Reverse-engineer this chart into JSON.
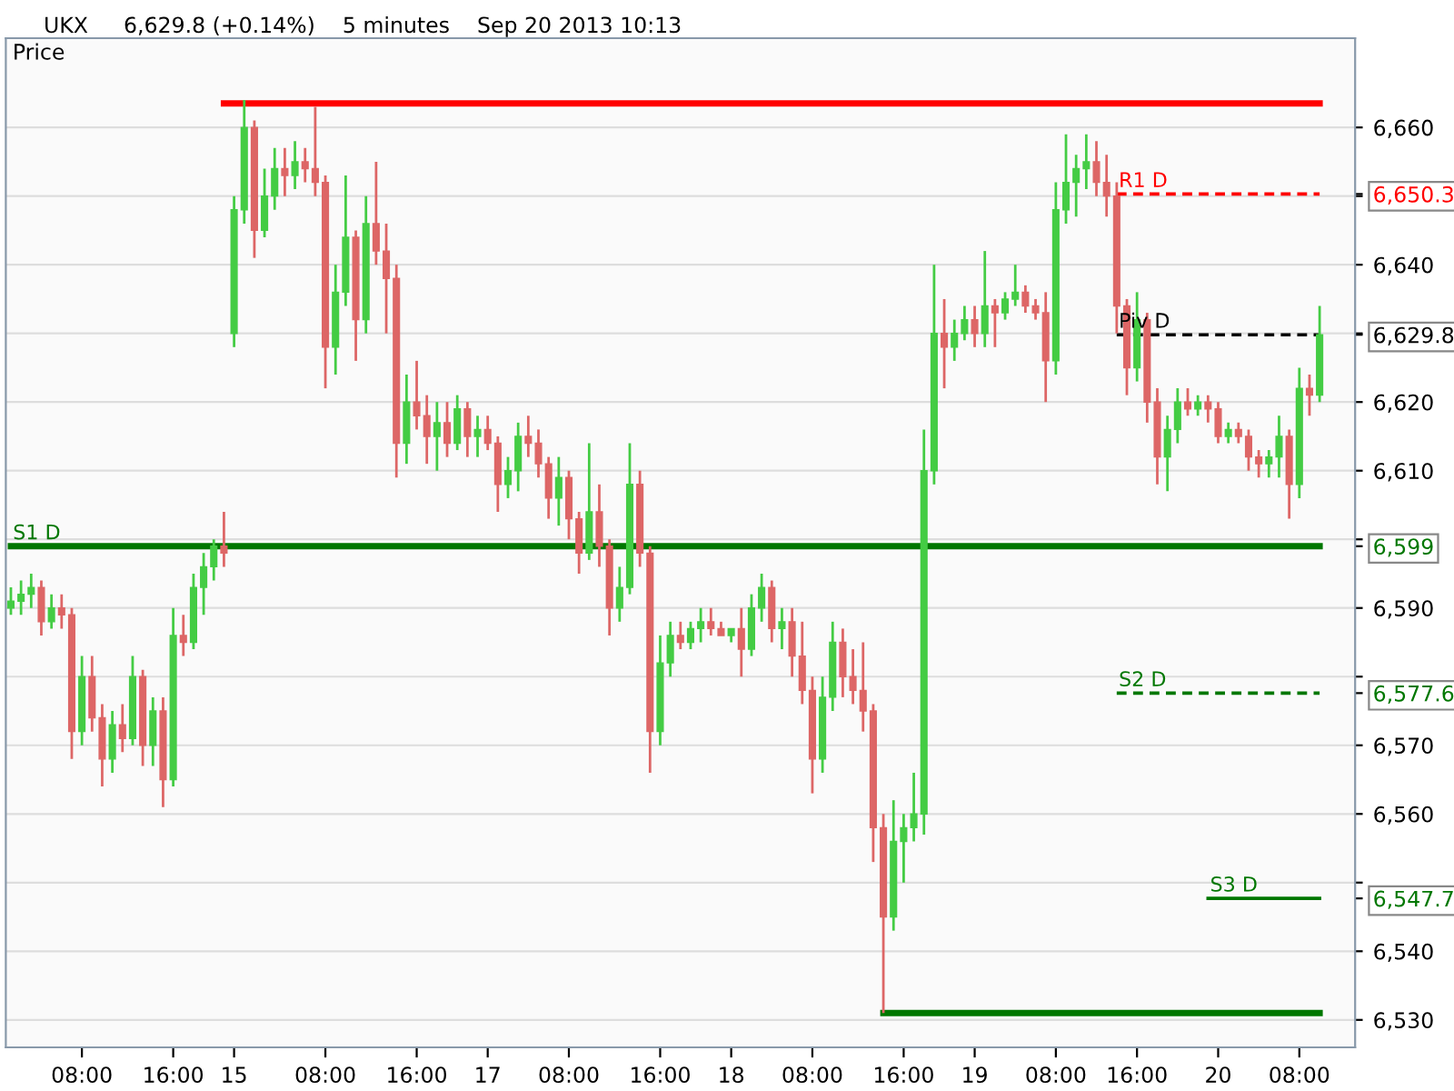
{
  "chart_data": {
    "type": "candlestick",
    "title": "UKX",
    "subtitle": "6,629.8 (+0.14%)    5 minutes    Sep 20 2013 10:13",
    "ylabel": "Price",
    "categories": [
      null,
      null,
      null,
      null,
      null,
      null,
      null,
      "08:00",
      null,
      null,
      null,
      null,
      null,
      null,
      null,
      null,
      "16:00",
      null,
      null,
      null,
      null,
      null,
      "15",
      null,
      null,
      null,
      null,
      null,
      null,
      null,
      null,
      "08:00",
      null,
      null,
      null,
      null,
      null,
      null,
      null,
      null,
      "16:00",
      null,
      null,
      null,
      null,
      null,
      null,
      "17",
      null,
      null,
      null,
      null,
      null,
      null,
      null,
      "08:00",
      null,
      null,
      null,
      null,
      null,
      null,
      null,
      null,
      "16:00",
      null,
      null,
      null,
      null,
      null,
      null,
      "18",
      null,
      null,
      null,
      null,
      null,
      null,
      null,
      "08:00",
      null,
      null,
      null,
      null,
      null,
      null,
      null,
      null,
      "16:00",
      null,
      null,
      null,
      null,
      null,
      null,
      "19",
      null,
      null,
      null,
      null,
      null,
      null,
      null,
      "08:00",
      null,
      null,
      null,
      null,
      null,
      null,
      null,
      "16:00",
      null,
      null,
      null,
      null,
      null,
      null,
      null,
      "20",
      null,
      null,
      null,
      null,
      null,
      null,
      null,
      "08:00",
      null,
      null
    ],
    "ohlc": [
      [
        6590,
        6593,
        6589,
        6591
      ],
      [
        6591,
        6594,
        6589,
        6592
      ],
      [
        6592,
        6595,
        6590,
        6593
      ],
      [
        6593,
        6594,
        6586,
        6588
      ],
      [
        6588,
        6592,
        6587,
        6590
      ],
      [
        6590,
        6592,
        6587,
        6589
      ],
      [
        6589,
        6590,
        6568,
        6572
      ],
      [
        6572,
        6583,
        6570,
        6580
      ],
      [
        6580,
        6583,
        6572,
        6574
      ],
      [
        6574,
        6576,
        6564,
        6568
      ],
      [
        6568,
        6575,
        6566,
        6573
      ],
      [
        6573,
        6576,
        6569,
        6571
      ],
      [
        6571,
        6583,
        6570,
        6580
      ],
      [
        6580,
        6581,
        6567,
        6570
      ],
      [
        6570,
        6577,
        6567,
        6575
      ],
      [
        6575,
        6577,
        6561,
        6565
      ],
      [
        6565,
        6590,
        6564,
        6586
      ],
      [
        6586,
        6589,
        6583,
        6585
      ],
      [
        6585,
        6595,
        6584,
        6593
      ],
      [
        6593,
        6598,
        6589,
        6596
      ],
      [
        6596,
        6600,
        6594,
        6599
      ],
      [
        6599,
        6604,
        6596,
        6598
      ],
      [
        6630,
        6650,
        6628,
        6648
      ],
      [
        6648,
        6664,
        6646,
        6660
      ],
      [
        6660,
        6661,
        6641,
        6645
      ],
      [
        6645,
        6654,
        6644,
        6650
      ],
      [
        6650,
        6657,
        6648,
        6654
      ],
      [
        6654,
        6657,
        6650,
        6653
      ],
      [
        6653,
        6658,
        6651,
        6655
      ],
      [
        6655,
        6657,
        6652,
        6654
      ],
      [
        6654,
        6663,
        6650,
        6652
      ],
      [
        6652,
        6653,
        6622,
        6628
      ],
      [
        6628,
        6640,
        6624,
        6636
      ],
      [
        6636,
        6653,
        6634,
        6644
      ],
      [
        6644,
        6645,
        6626,
        6632
      ],
      [
        6632,
        6650,
        6630,
        6646
      ],
      [
        6646,
        6655,
        6640,
        6642
      ],
      [
        6642,
        6646,
        6630,
        6638
      ],
      [
        6638,
        6640,
        6609,
        6614
      ],
      [
        6614,
        6624,
        6611,
        6620
      ],
      [
        6620,
        6626,
        6616,
        6618
      ],
      [
        6618,
        6621,
        6611,
        6615
      ],
      [
        6615,
        6620,
        6610,
        6617
      ],
      [
        6617,
        6620,
        6612,
        6614
      ],
      [
        6614,
        6621,
        6613,
        6619
      ],
      [
        6619,
        6620,
        6612,
        6615
      ],
      [
        6615,
        6618,
        6612,
        6616
      ],
      [
        6616,
        6618,
        6613,
        6614
      ],
      [
        6614,
        6615,
        6604,
        6608
      ],
      [
        6608,
        6612,
        6606,
        6610
      ],
      [
        6610,
        6617,
        6607,
        6615
      ],
      [
        6615,
        6618,
        6612,
        6614
      ],
      [
        6614,
        6616,
        6609,
        6611
      ],
      [
        6611,
        6612,
        6603,
        6606
      ],
      [
        6606,
        6612,
        6602,
        6609
      ],
      [
        6609,
        6610,
        6600,
        6603
      ],
      [
        6603,
        6604,
        6595,
        6598
      ],
      [
        6598,
        6614,
        6597,
        6604
      ],
      [
        6604,
        6608,
        6596,
        6599
      ],
      [
        6599,
        6600,
        6586,
        6590
      ],
      [
        6590,
        6596,
        6588,
        6593
      ],
      [
        6593,
        6614,
        6592,
        6608
      ],
      [
        6608,
        6610,
        6596,
        6598
      ],
      [
        6598,
        6599,
        6566,
        6572
      ],
      [
        6572,
        6586,
        6570,
        6582
      ],
      [
        6582,
        6588,
        6580,
        6586
      ],
      [
        6586,
        6588,
        6584,
        6585
      ],
      [
        6585,
        6588,
        6584,
        6587
      ],
      [
        6587,
        6590,
        6585,
        6588
      ],
      [
        6588,
        6590,
        6586,
        6587
      ],
      [
        6587,
        6588,
        6586,
        6586
      ],
      [
        6586,
        6587,
        6585,
        6587
      ],
      [
        6587,
        6590,
        6580,
        6584
      ],
      [
        6584,
        6592,
        6583,
        6590
      ],
      [
        6590,
        6595,
        6588,
        6593
      ],
      [
        6593,
        6594,
        6585,
        6587
      ],
      [
        6587,
        6590,
        6584,
        6588
      ],
      [
        6588,
        6590,
        6580,
        6583
      ],
      [
        6583,
        6588,
        6576,
        6578
      ],
      [
        6578,
        6580,
        6563,
        6568
      ],
      [
        6568,
        6580,
        6566,
        6577
      ],
      [
        6577,
        6588,
        6575,
        6585
      ],
      [
        6585,
        6587,
        6577,
        6580
      ],
      [
        6580,
        6584,
        6576,
        6578
      ],
      [
        6578,
        6585,
        6572,
        6575
      ],
      [
        6575,
        6576,
        6553,
        6558
      ],
      [
        6558,
        6560,
        6531,
        6545
      ],
      [
        6545,
        6562,
        6543,
        6556
      ],
      [
        6556,
        6560,
        6550,
        6558
      ],
      [
        6558,
        6566,
        6556,
        6560
      ],
      [
        6560,
        6616,
        6557,
        6610
      ],
      [
        6610,
        6640,
        6608,
        6630
      ],
      [
        6630,
        6635,
        6622,
        6628
      ],
      [
        6628,
        6632,
        6626,
        6630
      ],
      [
        6630,
        6634,
        6629,
        6632
      ],
      [
        6632,
        6634,
        6628,
        6630
      ],
      [
        6630,
        6642,
        6628,
        6634
      ],
      [
        6634,
        6635,
        6628,
        6633
      ],
      [
        6633,
        6636,
        6632,
        6635
      ],
      [
        6635,
        6640,
        6634,
        6636
      ],
      [
        6636,
        6637,
        6633,
        6634
      ],
      [
        6634,
        6635,
        6632,
        6633
      ],
      [
        6633,
        6636,
        6620,
        6626
      ],
      [
        6626,
        6652,
        6624,
        6648
      ],
      [
        6648,
        6659,
        6646,
        6652
      ],
      [
        6652,
        6656,
        6647,
        6654
      ],
      [
        6654,
        6659,
        6651,
        6655
      ],
      [
        6655,
        6658,
        6650,
        6652
      ],
      [
        6652,
        6656,
        6647,
        6650
      ],
      [
        6650,
        6652,
        6630,
        6634
      ],
      [
        6634,
        6635,
        6621,
        6625
      ],
      [
        6625,
        6636,
        6623,
        6632
      ],
      [
        6632,
        6633,
        6617,
        6620
      ],
      [
        6620,
        6622,
        6608,
        6612
      ],
      [
        6612,
        6618,
        6607,
        6616
      ],
      [
        6616,
        6622,
        6614,
        6620
      ],
      [
        6620,
        6622,
        6618,
        6619
      ],
      [
        6619,
        6621,
        6618,
        6620
      ],
      [
        6620,
        6621,
        6617,
        6619
      ],
      [
        6619,
        6620,
        6614,
        6615
      ],
      [
        6615,
        6617,
        6614,
        6616
      ],
      [
        6616,
        6617,
        6614,
        6615
      ],
      [
        6615,
        6616,
        6610,
        6612
      ],
      [
        6612,
        6613,
        6609,
        6611
      ],
      [
        6611,
        6613,
        6609,
        6612
      ],
      [
        6612,
        6618,
        6609,
        6615
      ],
      [
        6615,
        6616,
        6603,
        6608
      ],
      [
        6608,
        6625,
        6606,
        6622
      ],
      [
        6622,
        6624,
        6618,
        6621
      ],
      [
        6621,
        6634,
        6620,
        6629.8
      ]
    ],
    "colors": [
      "#44cc44",
      "#44cc44",
      "#44cc44",
      "#dd6666",
      "#44cc44",
      "#dd6666",
      "#dd6666",
      "#44cc44",
      "#dd6666",
      "#dd6666",
      "#44cc44",
      "#dd6666",
      "#44cc44",
      "#dd6666",
      "#44cc44",
      "#dd6666",
      "#44cc44",
      "#dd6666",
      "#44cc44",
      "#44cc44",
      "#44cc44",
      "#dd6666",
      "#44cc44",
      "#44cc44",
      "#dd6666",
      "#44cc44",
      "#44cc44",
      "#dd6666",
      "#44cc44",
      "#dd6666",
      "#dd6666",
      "#dd6666",
      "#44cc44",
      "#44cc44",
      "#dd6666",
      "#44cc44",
      "#dd6666",
      "#dd6666",
      "#dd6666",
      "#44cc44",
      "#dd6666",
      "#dd6666",
      "#44cc44",
      "#dd6666",
      "#44cc44",
      "#dd6666",
      "#44cc44",
      "#dd6666",
      "#dd6666",
      "#44cc44",
      "#44cc44",
      "#dd6666",
      "#dd6666",
      "#dd6666",
      "#44cc44",
      "#dd6666",
      "#dd6666",
      "#44cc44",
      "#dd6666",
      "#dd6666",
      "#44cc44",
      "#44cc44",
      "#dd6666",
      "#dd6666",
      "#44cc44",
      "#44cc44",
      "#dd6666",
      "#44cc44",
      "#44cc44",
      "#dd6666",
      "#dd6666",
      "#44cc44",
      "#dd6666",
      "#44cc44",
      "#44cc44",
      "#dd6666",
      "#44cc44",
      "#dd6666",
      "#dd6666",
      "#dd6666",
      "#44cc44",
      "#44cc44",
      "#dd6666",
      "#dd6666",
      "#dd6666",
      "#dd6666",
      "#dd6666",
      "#44cc44",
      "#44cc44",
      "#44cc44",
      "#44cc44",
      "#44cc44",
      "#dd6666",
      "#44cc44",
      "#44cc44",
      "#dd6666",
      "#44cc44",
      "#dd6666",
      "#44cc44",
      "#44cc44",
      "#dd6666",
      "#dd6666",
      "#dd6666",
      "#44cc44",
      "#44cc44",
      "#44cc44",
      "#44cc44",
      "#dd6666",
      "#dd6666",
      "#dd6666",
      "#dd6666",
      "#44cc44",
      "#dd6666",
      "#dd6666",
      "#44cc44",
      "#44cc44",
      "#dd6666",
      "#44cc44",
      "#dd6666",
      "#dd6666",
      "#44cc44",
      "#dd6666",
      "#dd6666",
      "#dd6666",
      "#44cc44",
      "#44cc44",
      "#dd6666",
      "#44cc44",
      "#dd6666",
      "#44cc44"
    ],
    "series": [
      {
        "type": "line",
        "color": "#ff0000",
        "line_style": "solid",
        "values": [
          null,
          null,
          null,
          null,
          null,
          null,
          null,
          null,
          null,
          null,
          null,
          null,
          null,
          null,
          null,
          null,
          null,
          null,
          null,
          null,
          null,
          6663.5,
          6663.5,
          6663.5,
          6663.5,
          6663.5,
          6663.5,
          6663.5,
          6663.5,
          6663.5,
          6663.5,
          6663.5,
          6663.5,
          6663.5,
          6663.5,
          6663.5,
          6663.5,
          6663.5,
          6663.5,
          6663.5,
          6663.5,
          6663.5,
          6663.5,
          6663.5,
          6663.5,
          6663.5,
          6663.5,
          6663.5,
          6663.5,
          6663.5,
          6663.5,
          6663.5,
          6663.5,
          6663.5,
          6663.5,
          6663.5,
          6663.5,
          6663.5,
          6663.5,
          6663.5,
          6663.5,
          6663.5,
          6663.5,
          6663.5,
          6663.5,
          6663.5,
          6663.5,
          6663.5,
          6663.5,
          6663.5,
          6663.5,
          6663.5,
          6663.5,
          6663.5,
          6663.5,
          6663.5,
          6663.5,
          6663.5,
          6663.5,
          6663.5,
          6663.5,
          6663.5,
          6663.5,
          6663.5,
          6663.5,
          6663.5,
          6663.5,
          6663.5,
          6663.5,
          6663.5,
          6663.5,
          6663.5,
          6663.5,
          6663.5,
          6663.5,
          6663.5,
          6663.5,
          6663.5,
          6663.5,
          6663.5,
          6663.5,
          6663.5,
          6663.5,
          6663.5,
          6663.5,
          6663.5,
          6663.5,
          6663.5,
          6663.5,
          6663.5,
          6663.5,
          6663.5,
          6663.5,
          6663.5,
          6663.5,
          6663.5,
          6663.5,
          6663.5,
          6663.5,
          6663.5,
          6663.5,
          6663.5,
          6663.5,
          6663.5,
          6663.5,
          6663.5,
          6663.5,
          6663.5,
          6663.5,
          6663.5
        ]
      },
      {
        "type": "line",
        "name": "S1 D",
        "color": "#007700",
        "line_style": "solid",
        "values": [
          6599,
          6599,
          6599,
          6599,
          6599,
          6599,
          6599,
          6599,
          6599,
          6599,
          6599,
          6599,
          6599,
          6599,
          6599,
          6599,
          6599,
          6599,
          6599,
          6599,
          6599,
          6599,
          6599,
          6599,
          6599,
          6599,
          6599,
          6599,
          6599,
          6599,
          6599,
          6599,
          6599,
          6599,
          6599,
          6599,
          6599,
          6599,
          6599,
          6599,
          6599,
          6599,
          6599,
          6599,
          6599,
          6599,
          6599,
          6599,
          6599,
          6599,
          6599,
          6599,
          6599,
          6599,
          6599,
          6599,
          6599,
          6599,
          6599,
          6599,
          6599,
          6599,
          6599,
          6599,
          6599,
          6599,
          6599,
          6599,
          6599,
          6599,
          6599,
          6599,
          6599,
          6599,
          6599,
          6599,
          6599,
          6599,
          6599,
          6599,
          6599,
          6599,
          6599,
          6599,
          6599,
          6599,
          6599,
          6599,
          6599,
          6599,
          6599,
          6599,
          6599,
          6599,
          6599,
          6599,
          6599,
          6599,
          6599,
          6599,
          6599,
          6599,
          6599,
          6599,
          6599,
          6599,
          6599,
          6599,
          6599,
          6599,
          6599,
          6599,
          6599,
          6599,
          6599,
          6599,
          6599,
          6599,
          6599,
          6599,
          6599,
          6599,
          6599,
          6599,
          6599,
          6599,
          6599,
          6599,
          6599,
          6599
        ]
      },
      {
        "type": "line",
        "color": "#007700",
        "line_style": "solid",
        "values": [
          null,
          null,
          null,
          null,
          null,
          null,
          null,
          null,
          null,
          null,
          null,
          null,
          null,
          null,
          null,
          null,
          null,
          null,
          null,
          null,
          null,
          null,
          null,
          null,
          null,
          null,
          null,
          null,
          null,
          null,
          null,
          null,
          null,
          null,
          null,
          null,
          null,
          null,
          null,
          null,
          null,
          null,
          null,
          null,
          null,
          null,
          null,
          null,
          null,
          null,
          null,
          null,
          null,
          null,
          null,
          null,
          null,
          null,
          null,
          null,
          null,
          null,
          null,
          null,
          null,
          null,
          null,
          null,
          null,
          null,
          null,
          null,
          null,
          null,
          null,
          null,
          null,
          null,
          null,
          null,
          null,
          null,
          null,
          null,
          null,
          null,
          6531,
          6531,
          6531,
          6531,
          6531,
          6531,
          6531,
          6531,
          6531,
          6531,
          6531,
          6531,
          6531,
          6531,
          6531,
          6531,
          6531,
          6531,
          6531,
          6531,
          6531,
          6531,
          6531,
          6531,
          6531,
          6531,
          6531,
          6531,
          6531,
          6531,
          6531,
          6531,
          6531,
          6531,
          6531,
          6531,
          6531,
          6531,
          6531,
          6531,
          6531,
          6531,
          6531,
          6531
        ]
      },
      {
        "type": "line",
        "name": "R1 D",
        "color": "#ff0000",
        "line_style": "dashed",
        "values": [
          null,
          null,
          null,
          null,
          null,
          null,
          null,
          null,
          null,
          null,
          null,
          null,
          null,
          null,
          null,
          null,
          null,
          null,
          null,
          null,
          null,
          null,
          null,
          null,
          null,
          null,
          null,
          null,
          null,
          null,
          null,
          null,
          null,
          null,
          null,
          null,
          null,
          null,
          null,
          null,
          null,
          null,
          null,
          null,
          null,
          null,
          null,
          null,
          null,
          null,
          null,
          null,
          null,
          null,
          null,
          null,
          null,
          null,
          null,
          null,
          null,
          null,
          null,
          null,
          null,
          null,
          null,
          null,
          null,
          null,
          null,
          null,
          null,
          null,
          null,
          null,
          null,
          null,
          null,
          null,
          null,
          null,
          null,
          null,
          null,
          null,
          null,
          null,
          null,
          null,
          null,
          null,
          null,
          null,
          null,
          null,
          null,
          null,
          null,
          null,
          null,
          null,
          null,
          null,
          null,
          null,
          null,
          null,
          null,
          6650.3,
          6650.3,
          6650.3,
          6650.3,
          6650.3,
          6650.3,
          6650.3,
          6650.3,
          6650.3,
          6650.3,
          6650.3,
          6650.3,
          6650.3,
          6650.3,
          6650.3,
          6650.3,
          6650.3,
          6650.3,
          6650.3,
          6650.3,
          6650.3
        ]
      },
      {
        "type": "line",
        "name": "Piv D",
        "color": "#000000",
        "line_style": "dashed",
        "values": [
          null,
          null,
          null,
          null,
          null,
          null,
          null,
          null,
          null,
          null,
          null,
          null,
          null,
          null,
          null,
          null,
          null,
          null,
          null,
          null,
          null,
          null,
          null,
          null,
          null,
          null,
          null,
          null,
          null,
          null,
          null,
          null,
          null,
          null,
          null,
          null,
          null,
          null,
          null,
          null,
          null,
          null,
          null,
          null,
          null,
          null,
          null,
          null,
          null,
          null,
          null,
          null,
          null,
          null,
          null,
          null,
          null,
          null,
          null,
          null,
          null,
          null,
          null,
          null,
          null,
          null,
          null,
          null,
          null,
          null,
          null,
          null,
          null,
          null,
          null,
          null,
          null,
          null,
          null,
          null,
          null,
          null,
          null,
          null,
          null,
          null,
          null,
          null,
          null,
          null,
          null,
          null,
          null,
          null,
          null,
          null,
          null,
          null,
          null,
          null,
          null,
          null,
          null,
          null,
          null,
          null,
          null,
          null,
          null,
          6629.8,
          6629.8,
          6629.8,
          6629.8,
          6629.8,
          6629.8,
          6629.8,
          6629.8,
          6629.8,
          6629.8,
          6629.8,
          6629.8,
          6629.8,
          6629.8,
          6629.8,
          6629.8,
          6629.8,
          6629.8,
          6629.8,
          6629.8,
          6629.8
        ]
      },
      {
        "type": "line",
        "name": "S2 D",
        "color": "#007700",
        "line_style": "dashed",
        "values": [
          null,
          null,
          null,
          null,
          null,
          null,
          null,
          null,
          null,
          null,
          null,
          null,
          null,
          null,
          null,
          null,
          null,
          null,
          null,
          null,
          null,
          null,
          null,
          null,
          null,
          null,
          null,
          null,
          null,
          null,
          null,
          null,
          null,
          null,
          null,
          null,
          null,
          null,
          null,
          null,
          null,
          null,
          null,
          null,
          null,
          null,
          null,
          null,
          null,
          null,
          null,
          null,
          null,
          null,
          null,
          null,
          null,
          null,
          null,
          null,
          null,
          null,
          null,
          null,
          null,
          null,
          null,
          null,
          null,
          null,
          null,
          null,
          null,
          null,
          null,
          null,
          null,
          null,
          null,
          null,
          null,
          null,
          null,
          null,
          null,
          null,
          null,
          null,
          null,
          null,
          null,
          null,
          null,
          null,
          null,
          null,
          null,
          null,
          null,
          null,
          null,
          null,
          null,
          null,
          null,
          null,
          null,
          null,
          null,
          6577.6,
          6577.6,
          6577.6,
          6577.6,
          6577.6,
          6577.6,
          6577.6,
          6577.6,
          6577.6,
          6577.6,
          6577.6,
          6577.6,
          6577.6,
          6577.6,
          6577.6,
          6577.6,
          6577.6,
          6577.6,
          6577.6,
          6577.6,
          6577.6
        ]
      },
      {
        "type": "line",
        "name": "S3 D",
        "color": "#007700",
        "line_style": "solid",
        "values": [
          null,
          null,
          null,
          null,
          null,
          null,
          null,
          null,
          null,
          null,
          null,
          null,
          null,
          null,
          null,
          null,
          null,
          null,
          null,
          null,
          null,
          null,
          null,
          null,
          null,
          null,
          null,
          null,
          null,
          null,
          null,
          null,
          null,
          null,
          null,
          null,
          null,
          null,
          null,
          null,
          null,
          null,
          null,
          null,
          null,
          null,
          null,
          null,
          null,
          null,
          null,
          null,
          null,
          null,
          null,
          null,
          null,
          null,
          null,
          null,
          null,
          null,
          null,
          null,
          null,
          null,
          null,
          null,
          null,
          null,
          null,
          null,
          null,
          null,
          null,
          null,
          null,
          null,
          null,
          null,
          null,
          null,
          null,
          null,
          null,
          null,
          null,
          null,
          null,
          null,
          null,
          null,
          null,
          null,
          null,
          null,
          null,
          null,
          null,
          null,
          null,
          null,
          null,
          null,
          null,
          null,
          null,
          null,
          null,
          null,
          null,
          null,
          null,
          null,
          null,
          null,
          null,
          null,
          6547.7,
          6547.7,
          6547.7,
          6547.7,
          6547.7,
          6547.7,
          6547.7,
          6547.7,
          6547.7,
          6547.7,
          6547.7,
          6547.7
        ]
      }
    ],
    "ylim": [
      6526,
      6673
    ],
    "yticks": [
      {
        "value": 6530,
        "label": "6,530"
      },
      {
        "value": 6540,
        "label": "6,540"
      },
      {
        "value": 6550,
        "label": null
      },
      {
        "value": 6560,
        "label": "6,560"
      },
      {
        "value": 6570,
        "label": "6,570"
      },
      {
        "value": 6580,
        "label": null
      },
      {
        "value": 6590,
        "label": "6,590"
      },
      {
        "value": 6600,
        "label": null
      },
      {
        "value": 6610,
        "label": "6,610"
      },
      {
        "value": 6620,
        "label": "6,620"
      },
      {
        "value": 6630,
        "label": null
      },
      {
        "value": 6640,
        "label": "6,640"
      },
      {
        "value": 6650,
        "label": null
      },
      {
        "value": 6660,
        "label": "6,660"
      },
      {
        "value": 6650.3,
        "label": "6,650.3"
      },
      {
        "value": 6629.8,
        "label": "6,629.8"
      },
      {
        "value": 6599,
        "label": "6,599"
      },
      {
        "value": 6577.6,
        "label": "6,577.6"
      },
      {
        "value": 6547.7,
        "label": "6,547.7"
      }
    ],
    "grid": "y"
  }
}
